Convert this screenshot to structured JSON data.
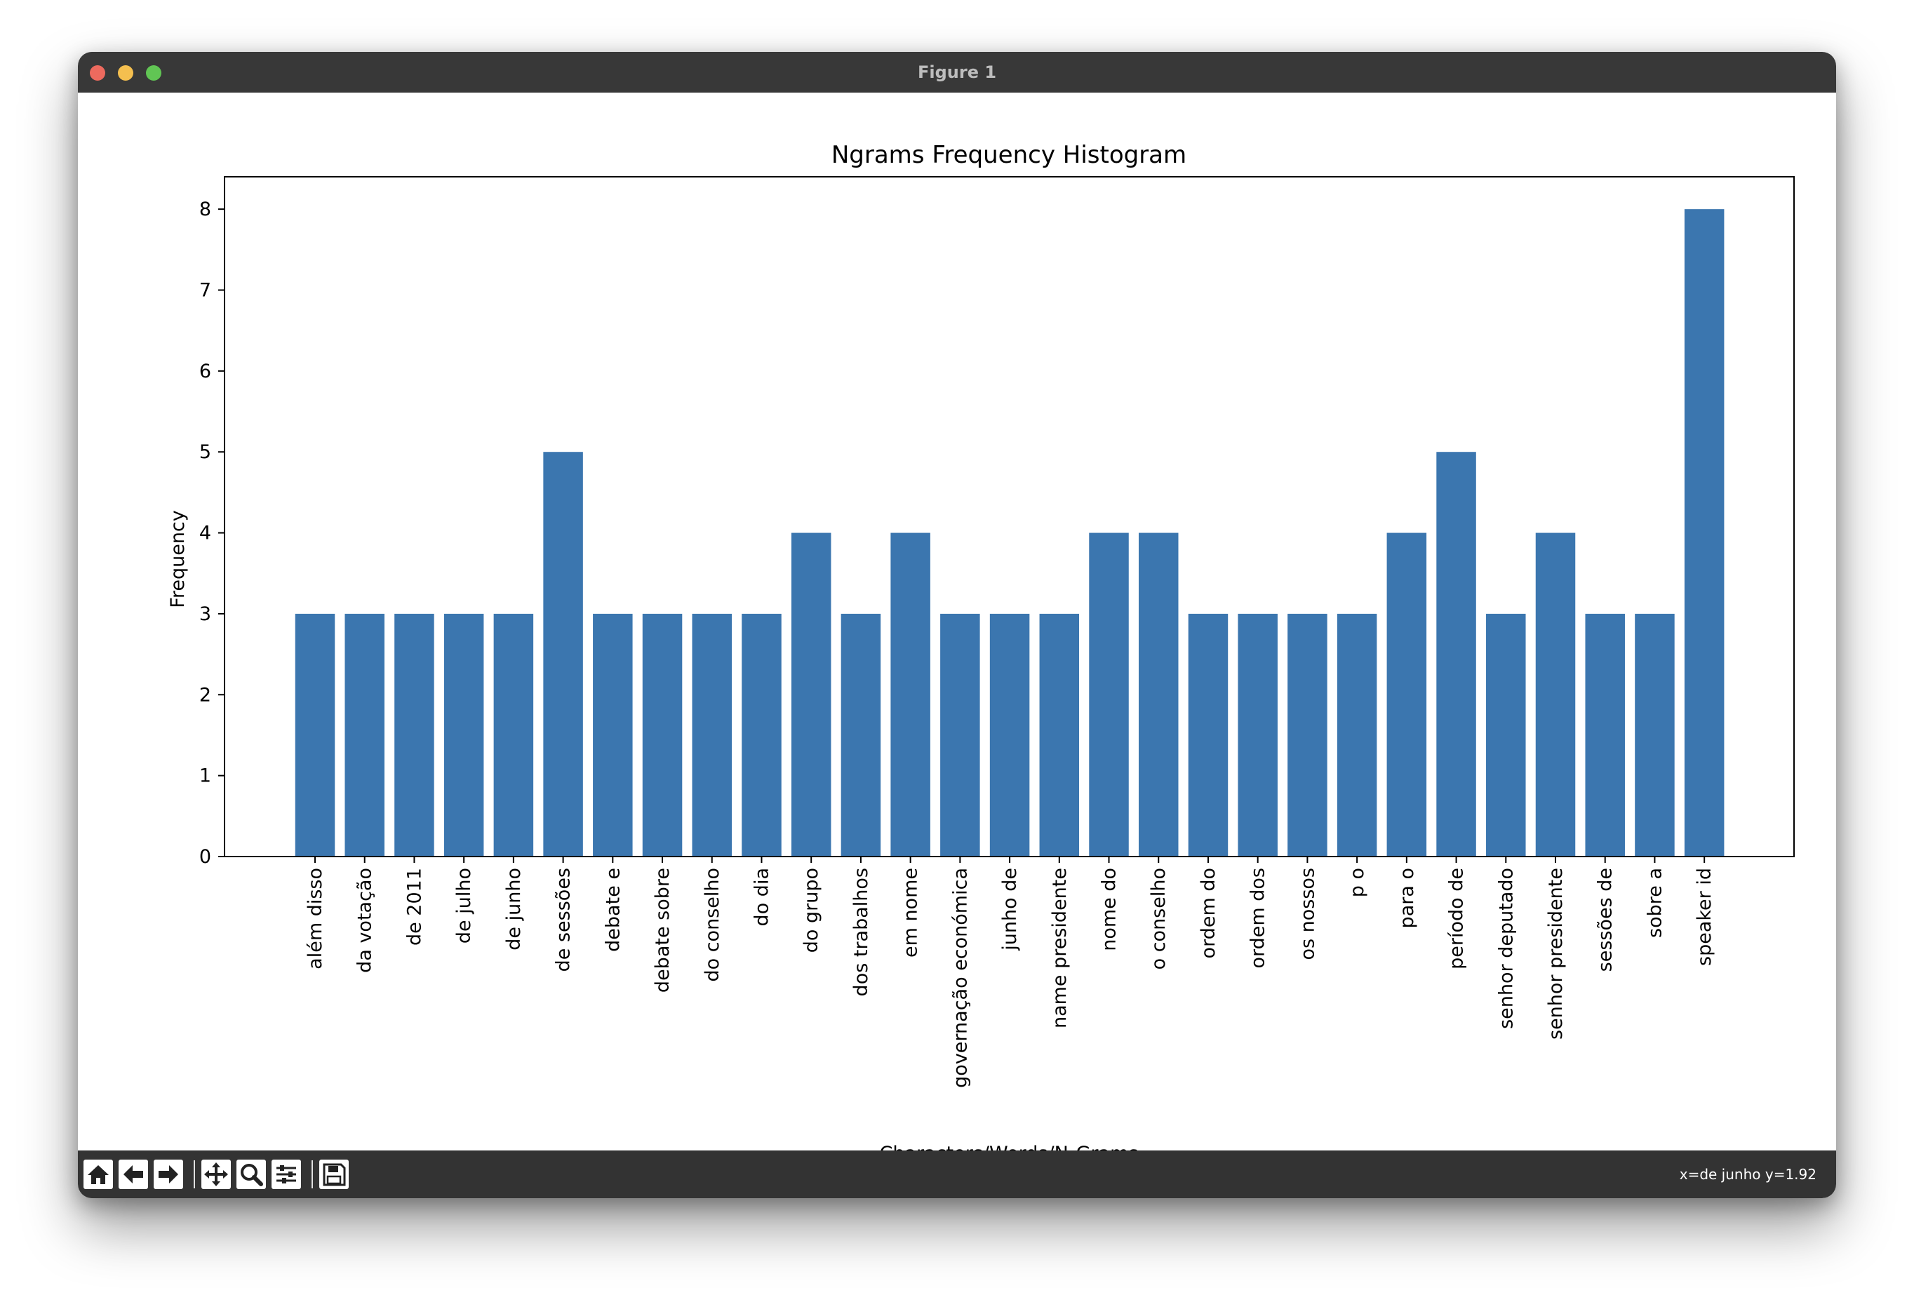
{
  "window": {
    "title": "Figure 1"
  },
  "toolbar": {
    "buttons": [
      {
        "name": "home-icon"
      },
      {
        "name": "back-arrow-icon"
      },
      {
        "name": "forward-arrow-icon"
      },
      {
        "name": "pan-icon"
      },
      {
        "name": "zoom-icon"
      },
      {
        "name": "configure-subplots-icon"
      },
      {
        "name": "save-icon"
      }
    ],
    "coords": "x=de junho y=1.92"
  },
  "chart_data": {
    "type": "bar",
    "title": "Ngrams Frequency Histogram",
    "xlabel": "Characters/Words/N-Grams",
    "ylabel": "Frequency",
    "ylim": [
      0,
      8.4
    ],
    "yticks": [
      0,
      1,
      2,
      3,
      4,
      5,
      6,
      7,
      8
    ],
    "grid": false,
    "bar_color": "#3b76af",
    "categories": [
      "além disso",
      "da votação",
      "de 2011",
      "de julho",
      "de junho",
      "de sessões",
      "debate e",
      "debate sobre",
      "do conselho",
      "do dia",
      "do grupo",
      "dos trabalhos",
      "em nome",
      "governação económica",
      "junho de",
      "name presidente",
      "nome do",
      "o conselho",
      "ordem do",
      "ordem dos",
      "os nossos",
      "p o",
      "para o",
      "período de",
      "senhor deputado",
      "senhor presidente",
      "sessões de",
      "sobre a",
      "speaker id"
    ],
    "values": [
      3,
      3,
      3,
      3,
      3,
      5,
      3,
      3,
      3,
      3,
      4,
      3,
      4,
      3,
      3,
      3,
      4,
      4,
      3,
      3,
      3,
      3,
      4,
      5,
      3,
      4,
      3,
      3,
      8
    ]
  }
}
